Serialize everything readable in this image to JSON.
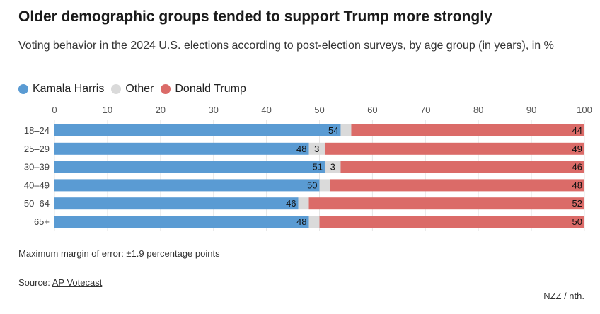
{
  "header": {
    "title": "Older demographic groups tended to support Trump more strongly",
    "subtitle": "Voting behavior in the 2024 U.S. elections according to post-election surveys, by age group (in years), in %"
  },
  "legend": [
    {
      "name": "Kamala Harris",
      "color": "#5a9bd3"
    },
    {
      "name": "Other",
      "color": "#dadada"
    },
    {
      "name": "Donald Trump",
      "color": "#db6b68"
    }
  ],
  "chart_data": {
    "type": "bar",
    "orientation": "horizontal",
    "stacked": true,
    "categories": [
      "18–24",
      "25–29",
      "30–39",
      "40–49",
      "50–64",
      "65+"
    ],
    "series": [
      {
        "name": "Kamala Harris",
        "color": "#5a9bd3",
        "values": [
          54,
          48,
          51,
          50,
          46,
          48
        ],
        "labels": [
          "54",
          "48",
          "51",
          "50",
          "46",
          "48"
        ]
      },
      {
        "name": "Other",
        "color": "#dadada",
        "values": [
          2,
          3,
          3,
          2,
          2,
          2
        ],
        "labels": [
          "",
          "3",
          "3",
          "",
          "",
          ""
        ]
      },
      {
        "name": "Donald Trump",
        "color": "#db6b68",
        "values": [
          44,
          49,
          46,
          48,
          52,
          50
        ],
        "labels": [
          "44",
          "49",
          "46",
          "48",
          "52",
          "50"
        ]
      }
    ],
    "xlim": [
      0,
      100
    ],
    "xticks": [
      "0",
      "10",
      "20",
      "30",
      "40",
      "50",
      "60",
      "70",
      "80",
      "90",
      "100"
    ],
    "axis_position": "top",
    "legend_position": "top-left"
  },
  "footer": {
    "note": "Maximum margin of error: ±1.9 percentage points",
    "source_label": "Source:",
    "source_link": "AP Votecast",
    "credit": "NZZ / nth."
  }
}
